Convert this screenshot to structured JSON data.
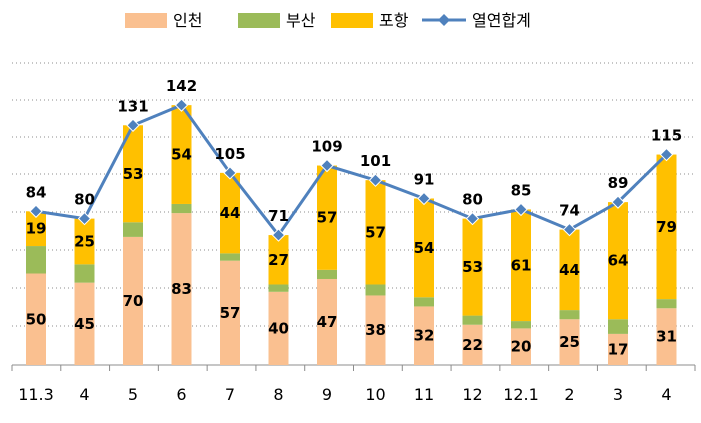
{
  "chart_data": {
    "type": "bar",
    "stacked": true,
    "title": "",
    "xlabel": "",
    "ylabel": "",
    "ylim": [
      0,
      170
    ],
    "grid": true,
    "legend_position": "top",
    "categories": [
      "11.3",
      "4",
      "5",
      "6",
      "7",
      "8",
      "9",
      "10",
      "11",
      "12",
      "12.1",
      "2",
      "3",
      "4"
    ],
    "series": [
      {
        "name": "인천",
        "kind": "bar",
        "color": "#FAC090",
        "values": [
          50,
          45,
          70,
          83,
          57,
          40,
          47,
          38,
          32,
          22,
          20,
          25,
          17,
          31
        ]
      },
      {
        "name": "부산",
        "kind": "bar",
        "color": "#9BBB59",
        "values": [
          15,
          10,
          8,
          5,
          4,
          4,
          5,
          6,
          5,
          5,
          4,
          5,
          8,
          5
        ]
      },
      {
        "name": "포항",
        "kind": "bar",
        "color": "#FFC000",
        "values": [
          19,
          25,
          53,
          54,
          44,
          27,
          57,
          57,
          54,
          53,
          61,
          44,
          64,
          79
        ]
      },
      {
        "name": "열연합계",
        "kind": "line",
        "color": "#4F81BD",
        "values": [
          84,
          80,
          131,
          142,
          105,
          71,
          109,
          101,
          91,
          80,
          85,
          74,
          89,
          115
        ]
      }
    ]
  }
}
